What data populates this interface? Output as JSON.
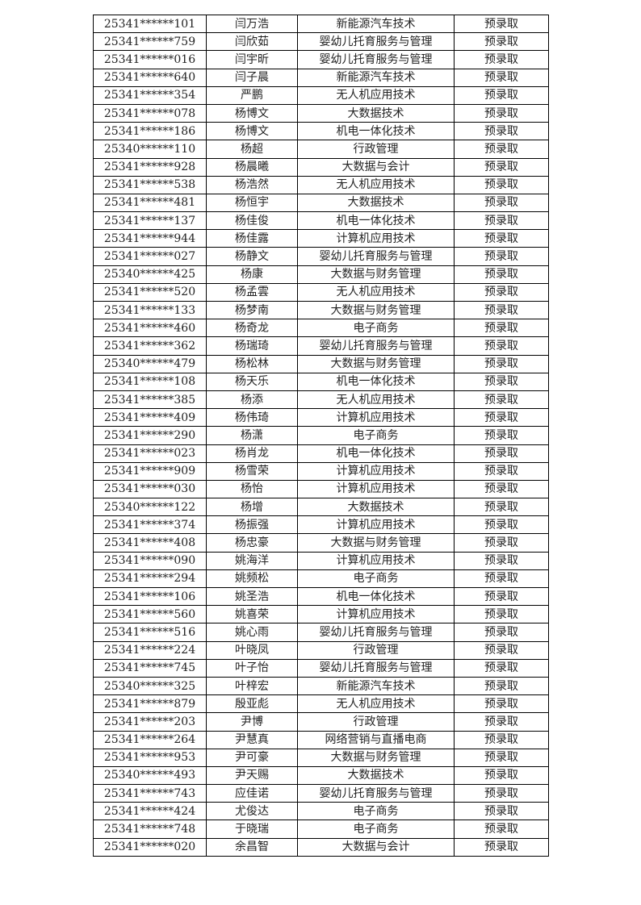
{
  "table": {
    "rows": [
      [
        "25341******101",
        "闫万浩",
        "新能源汽车技术",
        "预录取"
      ],
      [
        "25341******759",
        "闫欣茹",
        "婴幼儿托育服务与管理",
        "预录取"
      ],
      [
        "25341******016",
        "闫宇昕",
        "婴幼儿托育服务与管理",
        "预录取"
      ],
      [
        "25341******640",
        "闫子晨",
        "新能源汽车技术",
        "预录取"
      ],
      [
        "25341******354",
        "严鹏",
        "无人机应用技术",
        "预录取"
      ],
      [
        "25341******078",
        "杨博文",
        "大数据技术",
        "预录取"
      ],
      [
        "25341******186",
        "杨博文",
        "机电一体化技术",
        "预录取"
      ],
      [
        "25340******110",
        "杨超",
        "行政管理",
        "预录取"
      ],
      [
        "25341******928",
        "杨晨曦",
        "大数据与会计",
        "预录取"
      ],
      [
        "25341******538",
        "杨浩然",
        "无人机应用技术",
        "预录取"
      ],
      [
        "25341******481",
        "杨恒宇",
        "大数据技术",
        "预录取"
      ],
      [
        "25341******137",
        "杨佳俊",
        "机电一体化技术",
        "预录取"
      ],
      [
        "25341******944",
        "杨佳露",
        "计算机应用技术",
        "预录取"
      ],
      [
        "25341******027",
        "杨静文",
        "婴幼儿托育服务与管理",
        "预录取"
      ],
      [
        "25340******425",
        "杨康",
        "大数据与财务管理",
        "预录取"
      ],
      [
        "25341******520",
        "杨孟雲",
        "无人机应用技术",
        "预录取"
      ],
      [
        "25341******133",
        "杨梦南",
        "大数据与财务管理",
        "预录取"
      ],
      [
        "25341******460",
        "杨奇龙",
        "电子商务",
        "预录取"
      ],
      [
        "25341******362",
        "杨瑞琦",
        "婴幼儿托育服务与管理",
        "预录取"
      ],
      [
        "25340******479",
        "杨松林",
        "大数据与财务管理",
        "预录取"
      ],
      [
        "25341******108",
        "杨天乐",
        "机电一体化技术",
        "预录取"
      ],
      [
        "25341******385",
        "杨添",
        "无人机应用技术",
        "预录取"
      ],
      [
        "25341******409",
        "杨伟琦",
        "计算机应用技术",
        "预录取"
      ],
      [
        "25341******290",
        "杨潇",
        "电子商务",
        "预录取"
      ],
      [
        "25341******023",
        "杨肖龙",
        "机电一体化技术",
        "预录取"
      ],
      [
        "25341******909",
        "杨雪荣",
        "计算机应用技术",
        "预录取"
      ],
      [
        "25341******030",
        "杨怡",
        "计算机应用技术",
        "预录取"
      ],
      [
        "25340******122",
        "杨增",
        "大数据技术",
        "预录取"
      ],
      [
        "25341******374",
        "杨振强",
        "计算机应用技术",
        "预录取"
      ],
      [
        "25341******408",
        "杨忠豪",
        "大数据与财务管理",
        "预录取"
      ],
      [
        "25341******090",
        "姚海洋",
        "计算机应用技术",
        "预录取"
      ],
      [
        "25341******294",
        "姚频松",
        "电子商务",
        "预录取"
      ],
      [
        "25341******106",
        "姚圣浩",
        "机电一体化技术",
        "预录取"
      ],
      [
        "25341******560",
        "姚喜荣",
        "计算机应用技术",
        "预录取"
      ],
      [
        "25341******516",
        "姚心雨",
        "婴幼儿托育服务与管理",
        "预录取"
      ],
      [
        "25341******224",
        "叶晓凤",
        "行政管理",
        "预录取"
      ],
      [
        "25341******745",
        "叶子怡",
        "婴幼儿托育服务与管理",
        "预录取"
      ],
      [
        "25340******325",
        "叶梓宏",
        "新能源汽车技术",
        "预录取"
      ],
      [
        "25341******879",
        "殷亚彪",
        "无人机应用技术",
        "预录取"
      ],
      [
        "25341******203",
        "尹博",
        "行政管理",
        "预录取"
      ],
      [
        "25341******264",
        "尹慧真",
        "网络营销与直播电商",
        "预录取"
      ],
      [
        "25341******953",
        "尹可豪",
        "大数据与财务管理",
        "预录取"
      ],
      [
        "25340******493",
        "尹天赐",
        "大数据技术",
        "预录取"
      ],
      [
        "25341******743",
        "应佳诺",
        "婴幼儿托育服务与管理",
        "预录取"
      ],
      [
        "25341******424",
        "尤俊达",
        "电子商务",
        "预录取"
      ],
      [
        "25341******748",
        "于晓瑞",
        "电子商务",
        "预录取"
      ],
      [
        "25341******020",
        "余昌智",
        "大数据与会计",
        "预录取"
      ]
    ]
  }
}
